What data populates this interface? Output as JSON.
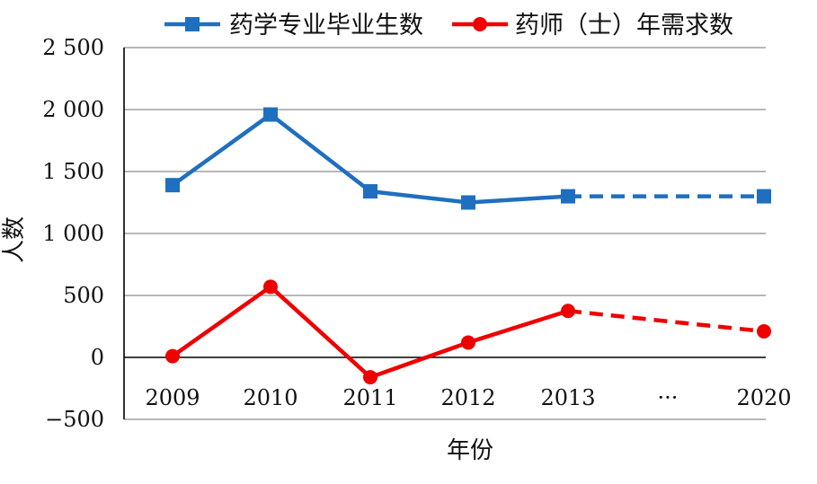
{
  "chart_data": {
    "type": "line",
    "title": "",
    "xlabel": "年份",
    "ylabel": "人数",
    "categories": [
      "2009",
      "2010",
      "2011",
      "2012",
      "2013",
      "···",
      "2020"
    ],
    "ylim": [
      -500,
      2500
    ],
    "yticks": [
      -500,
      0,
      500,
      1000,
      1500,
      2000,
      2500
    ],
    "ytick_labels": [
      "−500",
      "0",
      "500",
      "1 000",
      "1 500",
      "2 000",
      "2 500"
    ],
    "grid": true,
    "legend_position": "top",
    "series": [
      {
        "name": "药学专业毕业生数",
        "color": "#1f6fc0",
        "marker": "square",
        "values": [
          1390,
          1960,
          1340,
          1250,
          1300,
          null,
          1300
        ],
        "projected_from_category": "2013"
      },
      {
        "name": "药师（士）年需求数",
        "color": "#ee0000",
        "marker": "circle",
        "values": [
          10,
          570,
          -160,
          120,
          375,
          null,
          210
        ],
        "projected_from_category": "2013"
      }
    ]
  }
}
